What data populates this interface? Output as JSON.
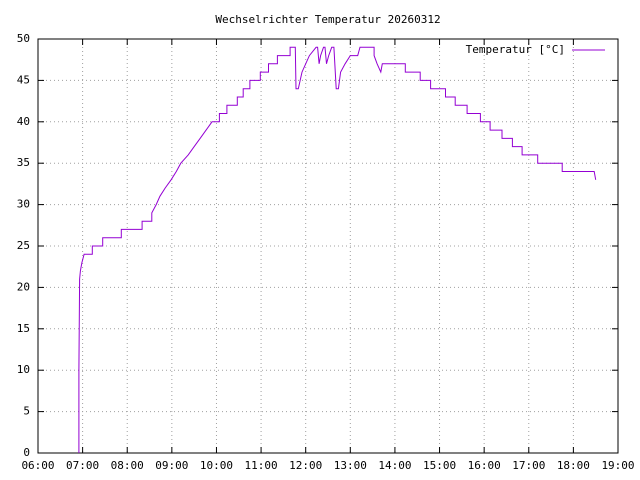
{
  "chart_data": {
    "type": "line",
    "title": "Wechselrichter Temperatur 20260312",
    "x": [
      "06:55",
      "06:55",
      "06:56",
      "06:57",
      "06:59",
      "07:02",
      "07:13",
      "07:13",
      "07:27",
      "07:27",
      "07:52",
      "07:52",
      "08:20",
      "08:20",
      "08:33",
      "08:33",
      "08:39",
      "08:44",
      "08:51",
      "08:59",
      "09:06",
      "09:12",
      "09:22",
      "09:30",
      "09:38",
      "09:46",
      "09:54",
      "10:04",
      "10:04",
      "10:14",
      "10:14",
      "10:28",
      "10:28",
      "10:36",
      "10:36",
      "10:45",
      "10:45",
      "10:59",
      "10:59",
      "11:10",
      "11:10",
      "11:22",
      "11:22",
      "11:39",
      "11:39",
      "11:46",
      "11:47",
      "11:50",
      "11:55",
      "12:00",
      "12:05",
      "12:14",
      "12:16",
      "12:18",
      "12:20",
      "12:24",
      "12:26",
      "12:28",
      "12:31",
      "12:35",
      "12:38",
      "12:41",
      "12:44",
      "12:47",
      "12:53",
      "13:00",
      "13:10",
      "13:13",
      "13:32",
      "13:32",
      "13:36",
      "13:41",
      "13:43",
      "14:14",
      "14:14",
      "14:34",
      "14:34",
      "14:48",
      "14:48",
      "15:08",
      "15:08",
      "15:21",
      "15:21",
      "15:37",
      "15:37",
      "15:55",
      "15:55",
      "16:08",
      "16:08",
      "16:24",
      "16:24",
      "16:38",
      "16:38",
      "16:51",
      "16:51",
      "17:12",
      "17:12",
      "17:45",
      "17:45",
      "18:28",
      "18:30"
    ],
    "series": [
      {
        "name": "Temperatur [°C]",
        "color": "#9400d3",
        "values": [
          0,
          10,
          21,
          22,
          23,
          24,
          24,
          25,
          25,
          26,
          26,
          27,
          27,
          28,
          28,
          29,
          30,
          31,
          32,
          33,
          34,
          35,
          36,
          37,
          38,
          39,
          40,
          40,
          41,
          41,
          42,
          42,
          43,
          43,
          44,
          44,
          45,
          45,
          46,
          46,
          47,
          47,
          48,
          48,
          49,
          49,
          44,
          44,
          46,
          47,
          48,
          49,
          49,
          47,
          48,
          49,
          49,
          47,
          48,
          49,
          49,
          44,
          44,
          46,
          47,
          48,
          48,
          49,
          49,
          48,
          47,
          46,
          47,
          47,
          46,
          46,
          45,
          45,
          44,
          44,
          43,
          43,
          42,
          42,
          41,
          41,
          40,
          40,
          39,
          39,
          38,
          38,
          37,
          37,
          36,
          36,
          35,
          35,
          34,
          34,
          33
        ]
      }
    ],
    "xlim": [
      "06:00",
      "19:00"
    ],
    "xticks": [
      "06:00",
      "07:00",
      "08:00",
      "09:00",
      "10:00",
      "11:00",
      "12:00",
      "13:00",
      "14:00",
      "15:00",
      "16:00",
      "17:00",
      "18:00",
      "19:00"
    ],
    "ylim": [
      0,
      50
    ],
    "yticks": [
      0,
      5,
      10,
      15,
      20,
      25,
      30,
      35,
      40,
      45,
      50
    ],
    "grid": true,
    "legend": "top-right"
  }
}
